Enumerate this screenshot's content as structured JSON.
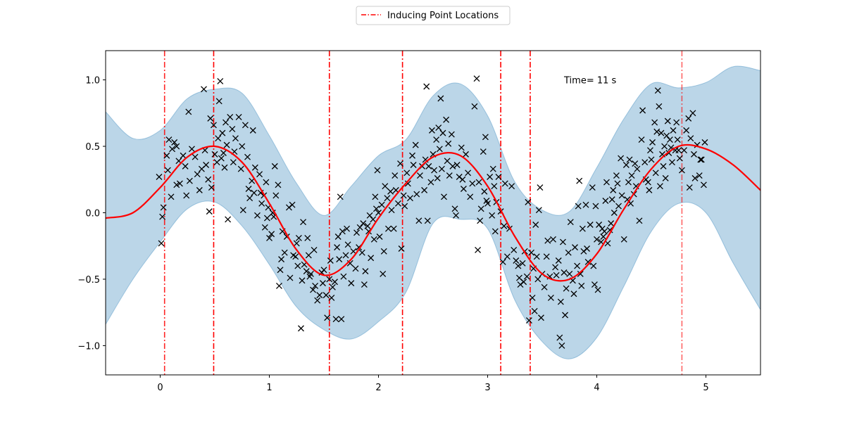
{
  "chart_data": {
    "type": "scatter",
    "title": "",
    "xlabel": "",
    "ylabel": "",
    "xlim": [
      -0.5,
      5.5
    ],
    "ylim": [
      -1.22,
      1.22
    ],
    "xticks": [
      0,
      1,
      2,
      3,
      4,
      5
    ],
    "xtick_labels": [
      "0",
      "1",
      "2",
      "3",
      "4",
      "5"
    ],
    "yticks": [
      -1.0,
      -0.5,
      0.0,
      0.5,
      1.0
    ],
    "ytick_labels": [
      "−1.0",
      "−0.5",
      "0.0",
      "0.5",
      "1.0"
    ],
    "grid": false,
    "annotation": {
      "text": "Time= 11 s",
      "x": 3.7,
      "y": 1.0
    },
    "legend": {
      "placement": "top-center",
      "entries": [
        {
          "label": "Inducing Point Locations",
          "color": "#ff0000",
          "style": "dash-dot"
        }
      ]
    },
    "colors": {
      "mean": "#ff0000",
      "band": "#1f77b4",
      "points": "#000000",
      "inducing": "#ff0000"
    },
    "mean": {
      "x": [
        -0.5,
        -0.25,
        0.0,
        0.25,
        0.5,
        0.75,
        1.0,
        1.25,
        1.5,
        1.75,
        2.0,
        2.25,
        2.5,
        2.75,
        3.0,
        3.25,
        3.5,
        3.75,
        4.0,
        4.25,
        4.5,
        4.75,
        5.0,
        5.25,
        5.5
      ],
      "y": [
        -0.04,
        0.0,
        0.19,
        0.42,
        0.5,
        0.38,
        0.07,
        -0.28,
        -0.47,
        -0.35,
        -0.04,
        0.22,
        0.42,
        0.43,
        0.2,
        -0.18,
        -0.46,
        -0.5,
        -0.31,
        0.03,
        0.33,
        0.5,
        0.48,
        0.36,
        0.17
      ]
    },
    "band": {
      "x": [
        -0.5,
        -0.25,
        0.0,
        0.25,
        0.5,
        0.75,
        1.0,
        1.25,
        1.5,
        1.75,
        2.0,
        2.25,
        2.5,
        2.75,
        3.0,
        3.25,
        3.5,
        3.75,
        4.0,
        4.25,
        4.5,
        4.75,
        5.0,
        5.25,
        5.5
      ],
      "upper": [
        0.76,
        0.56,
        0.62,
        0.86,
        0.93,
        0.9,
        0.58,
        0.22,
        -0.02,
        0.2,
        0.43,
        0.55,
        0.88,
        0.97,
        0.73,
        0.23,
        0.02,
        0.01,
        0.34,
        0.71,
        0.97,
        0.94,
        0.98,
        1.1,
        1.07
      ],
      "lower": [
        -0.84,
        -0.5,
        -0.22,
        0.03,
        0.08,
        -0.1,
        -0.39,
        -0.71,
        -0.88,
        -0.95,
        -0.82,
        -0.6,
        -0.08,
        -0.05,
        -0.12,
        -0.66,
        -0.97,
        -1.1,
        -0.94,
        -0.55,
        -0.14,
        0.07,
        0.0,
        -0.38,
        -0.73
      ]
    },
    "inducing_points": [
      {
        "x": 0.04,
        "alpha": 0.85
      },
      {
        "x": 0.49,
        "alpha": 1.0
      },
      {
        "x": 1.55,
        "alpha": 1.0
      },
      {
        "x": 2.22,
        "alpha": 1.0
      },
      {
        "x": 3.12,
        "alpha": 1.0
      },
      {
        "x": 3.39,
        "alpha": 1.0
      },
      {
        "x": 4.78,
        "alpha": 0.6
      }
    ],
    "points": [
      [
        -0.01,
        0.27
      ],
      [
        0.01,
        -0.23
      ],
      [
        0.02,
        -0.03
      ],
      [
        0.03,
        0.04
      ],
      [
        0.06,
        0.43
      ],
      [
        0.07,
        0.32
      ],
      [
        0.08,
        0.55
      ],
      [
        0.1,
        0.12
      ],
      [
        0.11,
        0.48
      ],
      [
        0.13,
        0.53
      ],
      [
        0.15,
        0.21
      ],
      [
        0.15,
        0.5
      ],
      [
        0.17,
        0.39
      ],
      [
        0.18,
        0.22
      ],
      [
        0.21,
        0.43
      ],
      [
        0.23,
        0.35
      ],
      [
        0.24,
        0.13
      ],
      [
        0.26,
        0.76
      ],
      [
        0.27,
        0.24
      ],
      [
        0.29,
        0.48
      ],
      [
        0.32,
        0.42
      ],
      [
        0.34,
        0.29
      ],
      [
        0.36,
        0.17
      ],
      [
        0.38,
        0.33
      ],
      [
        0.4,
        0.93
      ],
      [
        0.41,
        0.47
      ],
      [
        0.42,
        0.36
      ],
      [
        0.44,
        0.25
      ],
      [
        0.45,
        0.01
      ],
      [
        0.46,
        0.71
      ],
      [
        0.47,
        0.19
      ],
      [
        0.49,
        0.66
      ],
      [
        0.5,
        0.44
      ],
      [
        0.52,
        0.38
      ],
      [
        0.53,
        0.56
      ],
      [
        0.54,
        0.84
      ],
      [
        0.55,
        0.99
      ],
      [
        0.56,
        0.41
      ],
      [
        0.57,
        0.6
      ],
      [
        0.58,
        0.45
      ],
      [
        0.59,
        0.34
      ],
      [
        0.6,
        0.68
      ],
      [
        0.61,
        0.51
      ],
      [
        0.62,
        -0.05
      ],
      [
        0.64,
        0.72
      ],
      [
        0.66,
        0.63
      ],
      [
        0.67,
        0.38
      ],
      [
        0.68,
        0.46
      ],
      [
        0.69,
        0.56
      ],
      [
        0.72,
        0.72
      ],
      [
        0.74,
        0.33
      ],
      [
        0.75,
        0.5
      ],
      [
        0.76,
        0.02
      ],
      [
        0.78,
        0.66
      ],
      [
        0.8,
        0.42
      ],
      [
        0.81,
        0.18
      ],
      [
        0.82,
        0.11
      ],
      [
        0.84,
        0.24
      ],
      [
        0.85,
        0.62
      ],
      [
        0.86,
        0.15
      ],
      [
        0.87,
        0.34
      ],
      [
        0.89,
        -0.02
      ],
      [
        0.91,
        0.29
      ],
      [
        0.92,
        0.15
      ],
      [
        0.93,
        0.07
      ],
      [
        0.95,
        0.13
      ],
      [
        0.96,
        -0.11
      ],
      [
        0.97,
        0.23
      ],
      [
        0.98,
        -0.04
      ],
      [
        0.99,
        0.04
      ],
      [
        1.0,
        -0.19
      ],
      [
        1.02,
        -0.16
      ],
      [
        1.03,
        0.0
      ],
      [
        1.04,
        -0.03
      ],
      [
        1.05,
        0.35
      ],
      [
        1.06,
        0.13
      ],
      [
        1.08,
        0.21
      ],
      [
        1.09,
        -0.55
      ],
      [
        1.1,
        -0.43
      ],
      [
        1.11,
        -0.35
      ],
      [
        1.12,
        -0.14
      ],
      [
        1.14,
        -0.3
      ],
      [
        1.16,
        -0.18
      ],
      [
        1.18,
        0.04
      ],
      [
        1.19,
        -0.49
      ],
      [
        1.21,
        0.06
      ],
      [
        1.22,
        -0.32
      ],
      [
        1.24,
        -0.33
      ],
      [
        1.25,
        -0.23
      ],
      [
        1.26,
        -0.4
      ],
      [
        1.27,
        -0.19
      ],
      [
        1.29,
        -0.87
      ],
      [
        1.3,
        -0.51
      ],
      [
        1.31,
        -0.07
      ],
      [
        1.32,
        -0.39
      ],
      [
        1.34,
        -0.44
      ],
      [
        1.35,
        -0.19
      ],
      [
        1.36,
        -0.32
      ],
      [
        1.37,
        -0.48
      ],
      [
        1.38,
        -0.46
      ],
      [
        1.4,
        -0.58
      ],
      [
        1.41,
        -0.28
      ],
      [
        1.42,
        -0.55
      ],
      [
        1.44,
        -0.66
      ],
      [
        1.46,
        -0.62
      ],
      [
        1.48,
        -0.45
      ],
      [
        1.49,
        -0.53
      ],
      [
        1.5,
        -0.43
      ],
      [
        1.52,
        -0.62
      ],
      [
        1.53,
        -0.79
      ],
      [
        1.55,
        -0.5
      ],
      [
        1.56,
        -0.36
      ],
      [
        1.57,
        -0.64
      ],
      [
        1.58,
        -0.56
      ],
      [
        1.6,
        -0.52
      ],
      [
        1.61,
        -0.8
      ],
      [
        1.62,
        -0.26
      ],
      [
        1.63,
        -0.18
      ],
      [
        1.64,
        -0.35
      ],
      [
        1.65,
        0.12
      ],
      [
        1.66,
        -0.8
      ],
      [
        1.67,
        -0.14
      ],
      [
        1.68,
        -0.48
      ],
      [
        1.7,
        -0.32
      ],
      [
        1.71,
        -0.12
      ],
      [
        1.72,
        -0.24
      ],
      [
        1.74,
        -0.38
      ],
      [
        1.75,
        -0.53
      ],
      [
        1.77,
        -0.29
      ],
      [
        1.79,
        -0.42
      ],
      [
        1.8,
        -0.15
      ],
      [
        1.82,
        -0.26
      ],
      [
        1.83,
        -0.11
      ],
      [
        1.85,
        -0.3
      ],
      [
        1.86,
        -0.08
      ],
      [
        1.87,
        -0.54
      ],
      [
        1.88,
        -0.44
      ],
      [
        1.9,
        -0.1
      ],
      [
        1.91,
        -0.14
      ],
      [
        1.92,
        -0.02
      ],
      [
        1.93,
        -0.34
      ],
      [
        1.95,
        -0.05
      ],
      [
        1.96,
        -0.2
      ],
      [
        1.97,
        0.12
      ],
      [
        1.98,
        0.03
      ],
      [
        1.99,
        0.32
      ],
      [
        2.0,
        0.0
      ],
      [
        2.01,
        -0.18
      ],
      [
        2.03,
        0.06
      ],
      [
        2.04,
        -0.46
      ],
      [
        2.05,
        -0.29
      ],
      [
        2.06,
        0.2
      ],
      [
        2.08,
        0.11
      ],
      [
        2.09,
        -0.12
      ],
      [
        2.11,
        0.16
      ],
      [
        2.12,
        0.02
      ],
      [
        2.14,
        -0.12
      ],
      [
        2.15,
        0.28
      ],
      [
        2.16,
        0.17
      ],
      [
        2.18,
        0.07
      ],
      [
        2.2,
        0.37
      ],
      [
        2.21,
        -0.27
      ],
      [
        2.23,
        0.13
      ],
      [
        2.24,
        0.05
      ],
      [
        2.26,
        0.3
      ],
      [
        2.27,
        0.22
      ],
      [
        2.29,
        0.11
      ],
      [
        2.31,
        0.43
      ],
      [
        2.32,
        0.36
      ],
      [
        2.34,
        0.51
      ],
      [
        2.35,
        0.14
      ],
      [
        2.37,
        -0.06
      ],
      [
        2.38,
        0.28
      ],
      [
        2.4,
        0.35
      ],
      [
        2.42,
        0.17
      ],
      [
        2.43,
        0.4
      ],
      [
        2.44,
        0.95
      ],
      [
        2.45,
        -0.06
      ],
      [
        2.46,
        0.35
      ],
      [
        2.48,
        0.23
      ],
      [
        2.49,
        0.62
      ],
      [
        2.5,
        0.44
      ],
      [
        2.51,
        0.32
      ],
      [
        2.53,
        0.55
      ],
      [
        2.54,
        0.26
      ],
      [
        2.55,
        0.64
      ],
      [
        2.56,
        0.48
      ],
      [
        2.57,
        0.86
      ],
      [
        2.58,
        0.33
      ],
      [
        2.59,
        0.6
      ],
      [
        2.6,
        0.12
      ],
      [
        2.62,
        0.7
      ],
      [
        2.63,
        0.39
      ],
      [
        2.64,
        0.52
      ],
      [
        2.65,
        0.28
      ],
      [
        2.67,
        0.59
      ],
      [
        2.68,
        0.35
      ],
      [
        2.7,
        0.03
      ],
      [
        2.71,
        -0.02
      ],
      [
        2.72,
        0.36
      ],
      [
        2.74,
        0.27
      ],
      [
        2.76,
        0.49
      ],
      [
        2.77,
        0.25
      ],
      [
        2.78,
        0.18
      ],
      [
        2.8,
        0.44
      ],
      [
        2.82,
        0.3
      ],
      [
        2.84,
        0.12
      ],
      [
        2.86,
        0.22
      ],
      [
        2.88,
        0.8
      ],
      [
        2.9,
        1.01
      ],
      [
        2.91,
        -0.28
      ],
      [
        2.92,
        0.23
      ],
      [
        2.93,
        -0.06
      ],
      [
        2.94,
        0.03
      ],
      [
        2.96,
        0.46
      ],
      [
        2.97,
        0.16
      ],
      [
        2.98,
        0.57
      ],
      [
        2.99,
        0.09
      ],
      [
        3.0,
        0.07
      ],
      [
        3.02,
        0.27
      ],
      [
        3.04,
        -0.02
      ],
      [
        3.05,
        0.33
      ],
      [
        3.06,
        0.2
      ],
      [
        3.07,
        -0.14
      ],
      [
        3.08,
        0.08
      ],
      [
        3.1,
        0.27
      ],
      [
        3.12,
        0.01
      ],
      [
        3.14,
        -0.37
      ],
      [
        3.15,
        -0.1
      ],
      [
        3.16,
        0.22
      ],
      [
        3.18,
        -0.33
      ],
      [
        3.2,
        -0.12
      ],
      [
        3.22,
        0.2
      ],
      [
        3.24,
        -0.28
      ],
      [
        3.26,
        -0.36
      ],
      [
        3.28,
        -0.4
      ],
      [
        3.29,
        -0.49
      ],
      [
        3.3,
        -0.54
      ],
      [
        3.32,
        -0.38
      ],
      [
        3.33,
        -0.52
      ],
      [
        3.34,
        -0.29
      ],
      [
        3.36,
        -0.48
      ],
      [
        3.37,
        0.08
      ],
      [
        3.38,
        -0.81
      ],
      [
        3.4,
        -0.3
      ],
      [
        3.41,
        -0.64
      ],
      [
        3.42,
        -0.42
      ],
      [
        3.43,
        -0.74
      ],
      [
        3.44,
        -0.09
      ],
      [
        3.45,
        -0.33
      ],
      [
        3.46,
        -0.5
      ],
      [
        3.47,
        0.02
      ],
      [
        3.48,
        0.19
      ],
      [
        3.49,
        -0.79
      ],
      [
        3.5,
        -0.46
      ],
      [
        3.52,
        -0.56
      ],
      [
        3.54,
        -0.33
      ],
      [
        3.55,
        -0.21
      ],
      [
        3.57,
        -0.48
      ],
      [
        3.58,
        -0.64
      ],
      [
        3.6,
        -0.2
      ],
      [
        3.62,
        -0.41
      ],
      [
        3.63,
        -0.47
      ],
      [
        3.65,
        -0.36
      ],
      [
        3.66,
        -0.94
      ],
      [
        3.67,
        -0.67
      ],
      [
        3.68,
        -1.0
      ],
      [
        3.69,
        -0.22
      ],
      [
        3.7,
        -0.45
      ],
      [
        3.71,
        -0.77
      ],
      [
        3.72,
        -0.57
      ],
      [
        3.74,
        -0.3
      ],
      [
        3.75,
        -0.46
      ],
      [
        3.76,
        -0.07
      ],
      [
        3.78,
        -0.51
      ],
      [
        3.79,
        -0.61
      ],
      [
        3.8,
        -0.26
      ],
      [
        3.82,
        -0.4
      ],
      [
        3.83,
        0.05
      ],
      [
        3.84,
        0.24
      ],
      [
        3.85,
        -0.46
      ],
      [
        3.86,
        -0.55
      ],
      [
        3.87,
        -0.12
      ],
      [
        3.88,
        -0.29
      ],
      [
        3.9,
        0.06
      ],
      [
        3.91,
        -0.27
      ],
      [
        3.92,
        -0.37
      ],
      [
        3.94,
        -0.09
      ],
      [
        3.96,
        0.19
      ],
      [
        3.97,
        -0.4
      ],
      [
        3.98,
        -0.54
      ],
      [
        3.99,
        0.05
      ],
      [
        4.0,
        -0.2
      ],
      [
        4.01,
        -0.58
      ],
      [
        4.02,
        -0.09
      ],
      [
        4.04,
        -0.22
      ],
      [
        4.05,
        -0.12
      ],
      [
        4.06,
        -0.18
      ],
      [
        4.07,
        -0.14
      ],
      [
        4.08,
        0.09
      ],
      [
        4.09,
        0.23
      ],
      [
        4.1,
        -0.23
      ],
      [
        4.12,
        -0.13
      ],
      [
        4.13,
        -0.08
      ],
      [
        4.14,
        0.1
      ],
      [
        4.15,
        0.17
      ],
      [
        4.16,
        0.0
      ],
      [
        4.18,
        0.28
      ],
      [
        4.19,
        0.22
      ],
      [
        4.2,
        0.05
      ],
      [
        4.22,
        0.41
      ],
      [
        4.23,
        0.13
      ],
      [
        4.25,
        -0.2
      ],
      [
        4.27,
        0.36
      ],
      [
        4.28,
        0.1
      ],
      [
        4.29,
        0.23
      ],
      [
        4.3,
        0.4
      ],
      [
        4.31,
        0.07
      ],
      [
        4.32,
        0.28
      ],
      [
        4.34,
        0.14
      ],
      [
        4.35,
        0.37
      ],
      [
        4.36,
        0.2
      ],
      [
        4.37,
        0.33
      ],
      [
        4.39,
        -0.06
      ],
      [
        4.41,
        0.55
      ],
      [
        4.42,
        0.77
      ],
      [
        4.44,
        0.38
      ],
      [
        4.45,
        0.25
      ],
      [
        4.47,
        0.23
      ],
      [
        4.48,
        0.17
      ],
      [
        4.49,
        0.47
      ],
      [
        4.5,
        0.4
      ],
      [
        4.51,
        0.53
      ],
      [
        4.53,
        0.68
      ],
      [
        4.54,
        0.3
      ],
      [
        4.55,
        0.61
      ],
      [
        4.56,
        0.92
      ],
      [
        4.57,
        0.8
      ],
      [
        4.58,
        0.2
      ],
      [
        4.59,
        0.6
      ],
      [
        4.6,
        0.44
      ],
      [
        4.61,
        0.35
      ],
      [
        4.62,
        0.5
      ],
      [
        4.63,
        0.26
      ],
      [
        4.64,
        0.58
      ],
      [
        4.65,
        0.69
      ],
      [
        4.66,
        0.45
      ],
      [
        4.67,
        0.55
      ],
      [
        4.68,
        0.49
      ],
      [
        4.69,
        0.38
      ],
      [
        4.7,
        0.62
      ],
      [
        4.72,
        0.47
      ],
      [
        4.73,
        0.68
      ],
      [
        4.74,
        0.55
      ],
      [
        4.75,
        0.47
      ],
      [
        4.76,
        0.41
      ],
      [
        4.78,
        0.32
      ],
      [
        4.8,
        0.47
      ],
      [
        4.82,
        0.62
      ],
      [
        4.84,
        0.71
      ],
      [
        4.85,
        0.19
      ],
      [
        4.86,
        0.56
      ],
      [
        4.88,
        0.75
      ],
      [
        4.89,
        0.44
      ],
      [
        4.9,
        0.26
      ],
      [
        4.92,
        0.51
      ],
      [
        4.94,
        0.28
      ],
      [
        4.95,
        0.4
      ],
      [
        4.96,
        0.4
      ],
      [
        4.98,
        0.21
      ],
      [
        4.99,
        0.53
      ]
    ]
  }
}
